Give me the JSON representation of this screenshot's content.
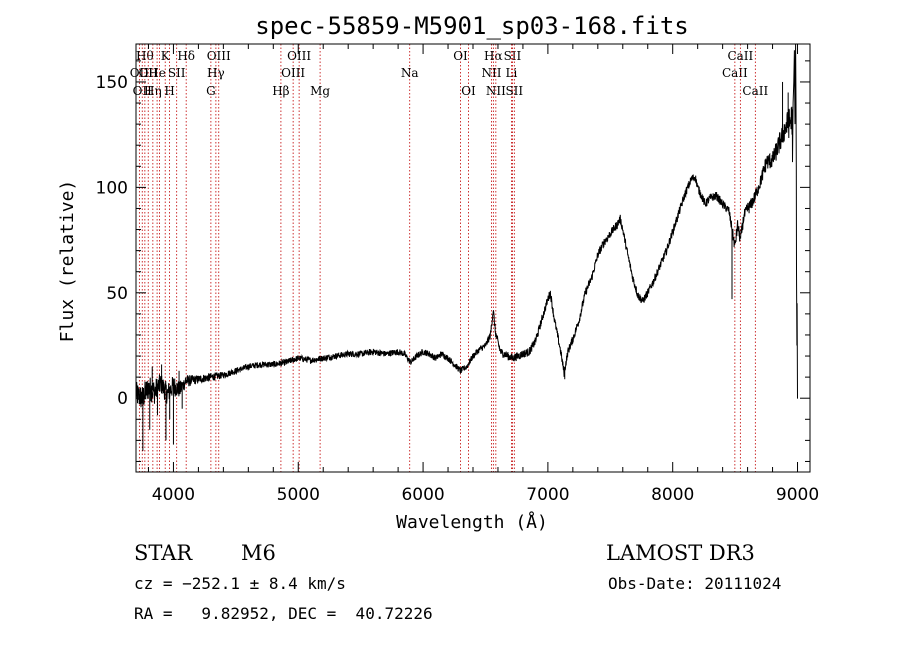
{
  "chart_data": {
    "type": "line",
    "title": "spec-55859-M5901_sp03-168.fits",
    "xlabel": "Wavelength (Å)",
    "ylabel": "Flux (relative)",
    "xlim": [
      3700,
      9100
    ],
    "ylim": [
      -35,
      168
    ],
    "xticks": [
      4000,
      5000,
      6000,
      7000,
      8000,
      9000
    ],
    "yticks": [
      0,
      50,
      100,
      150
    ],
    "xminor_step": 200,
    "yminor_step": 10,
    "line_color": "#000000",
    "marker_color": "#c00000",
    "spectrum_anchors": {
      "x": [
        3700,
        3750,
        3800,
        3850,
        3900,
        3950,
        4000,
        4050,
        4100,
        4200,
        4300,
        4400,
        4500,
        4600,
        4700,
        4800,
        4900,
        5000,
        5100,
        5200,
        5300,
        5400,
        5500,
        5600,
        5700,
        5800,
        5850,
        5900,
        5950,
        6000,
        6050,
        6100,
        6150,
        6200,
        6250,
        6300,
        6350,
        6400,
        6450,
        6500,
        6540,
        6562,
        6580,
        6620,
        6680,
        6720,
        6800,
        6850,
        6900,
        6950,
        7000,
        7020,
        7050,
        7100,
        7130,
        7160,
        7200,
        7250,
        7300,
        7350,
        7400,
        7450,
        7500,
        7550,
        7580,
        7600,
        7640,
        7680,
        7720,
        7760,
        7800,
        7850,
        7900,
        7950,
        8000,
        8050,
        8100,
        8150,
        8180,
        8200,
        8230,
        8260,
        8300,
        8350,
        8400,
        8450,
        8498,
        8520,
        8542,
        8570,
        8600,
        8620,
        8662,
        8700,
        8750,
        8800,
        8850,
        8900,
        8950,
        8975,
        9000
      ],
      "y": [
        2,
        0,
        5,
        3,
        7,
        2,
        6,
        4,
        8,
        9,
        10,
        11,
        13,
        15,
        16,
        16,
        17,
        19,
        18,
        19,
        20,
        21,
        21,
        22,
        21,
        22,
        21,
        17,
        20,
        22,
        21,
        19,
        21,
        19,
        16,
        13,
        15,
        20,
        23,
        25,
        30,
        42,
        31,
        22,
        20,
        19,
        21,
        22,
        27,
        37,
        47,
        50,
        38,
        23,
        12,
        22,
        28,
        37,
        50,
        57,
        68,
        74,
        78,
        82,
        85,
        80,
        68,
        57,
        49,
        46,
        50,
        56,
        63,
        70,
        79,
        88,
        97,
        104,
        105,
        100,
        96,
        92,
        95,
        96,
        92,
        89,
        72,
        82,
        75,
        86,
        90,
        91,
        96,
        102,
        112,
        113,
        120,
        128,
        132,
        136,
        118
      ],
      "noise": [
        6,
        6,
        6,
        6,
        5,
        5,
        5,
        4,
        3,
        2,
        2,
        1.5,
        1.5,
        1.5,
        1.5,
        1.5,
        1.5,
        1.5,
        1.5,
        1.5,
        1.5,
        1.5,
        1.5,
        1.5,
        1.5,
        1.5,
        1.5,
        1.5,
        1.5,
        1.5,
        1.5,
        1.5,
        1.5,
        1.5,
        1.5,
        1.5,
        1.5,
        1.5,
        1.5,
        1.5,
        2,
        2,
        2,
        2,
        2,
        2,
        2,
        2,
        2,
        2,
        2,
        2,
        2,
        2,
        2,
        2,
        2,
        2,
        2,
        2,
        2,
        2,
        2,
        2,
        2,
        2,
        2,
        2,
        2,
        2,
        2,
        2,
        2,
        2,
        2,
        2,
        2,
        2,
        2,
        2,
        2,
        2,
        2,
        2,
        2,
        2,
        3,
        3,
        3,
        3,
        3,
        3,
        3,
        3,
        4,
        4,
        5,
        6,
        8,
        10,
        12
      ]
    },
    "spectrum_tail": {
      "x": [
        8960,
        8965,
        8970,
        8975,
        8980,
        8985,
        8988,
        8990,
        8992,
        8995,
        8997,
        9000,
        9002
      ],
      "y": [
        112,
        140,
        150,
        165,
        130,
        168,
        140,
        110,
        60,
        25,
        45,
        0,
        0
      ]
    },
    "spikes": [
      {
        "x": 3755,
        "y": -25
      },
      {
        "x": 3810,
        "y": -15
      },
      {
        "x": 3830,
        "y": 15
      },
      {
        "x": 3872,
        "y": -8
      },
      {
        "x": 3905,
        "y": 16
      },
      {
        "x": 3940,
        "y": -20
      },
      {
        "x": 3970,
        "y": -10
      },
      {
        "x": 4000,
        "y": -22
      },
      {
        "x": 4045,
        "y": 13
      },
      {
        "x": 4070,
        "y": -5
      },
      {
        "x": 4100,
        "y": 10
      },
      {
        "x": 7135,
        "y": 9
      },
      {
        "x": 7160,
        "y": 23
      },
      {
        "x": 8475,
        "y": 47
      },
      {
        "x": 8880,
        "y": 150
      },
      {
        "x": 8925,
        "y": 145
      }
    ],
    "lines": [
      {
        "x": 3727,
        "name": "OII",
        "row": 1
      },
      {
        "x": 3750,
        "name": "OII",
        "row": 2
      },
      {
        "x": 3771,
        "name": "Hθ",
        "row": 0
      },
      {
        "x": 3798,
        "name": "OII",
        "row": 1
      },
      {
        "x": 3835,
        "name": "Hη",
        "row": 2
      },
      {
        "x": 3869,
        "name": "He",
        "row": 1
      },
      {
        "x": 3889,
        "name": "",
        "row": 1
      },
      {
        "x": 3934,
        "name": "K",
        "row": 0
      },
      {
        "x": 3969,
        "name": "H",
        "row": 2
      },
      {
        "x": 4026,
        "name": "SII",
        "row": 1
      },
      {
        "x": 4102,
        "name": "Hδ",
        "row": 0
      },
      {
        "x": 4300,
        "name": "G",
        "row": 2
      },
      {
        "x": 4340,
        "name": "Hγ",
        "row": 1
      },
      {
        "x": 4363,
        "name": "OIII",
        "row": 0
      },
      {
        "x": 4861,
        "name": "Hβ",
        "row": 2
      },
      {
        "x": 4959,
        "name": "OIII",
        "row": 1
      },
      {
        "x": 5007,
        "name": "OIII",
        "row": 0
      },
      {
        "x": 5175,
        "name": "Mg",
        "row": 2
      },
      {
        "x": 5893,
        "name": "Na",
        "row": 1
      },
      {
        "x": 6300,
        "name": "OI",
        "row": 0
      },
      {
        "x": 6364,
        "name": "OI",
        "row": 2
      },
      {
        "x": 6548,
        "name": "NII",
        "row": 1
      },
      {
        "x": 6563,
        "name": "Hα",
        "row": 0
      },
      {
        "x": 6583,
        "name": "NII",
        "row": 2
      },
      {
        "x": 6708,
        "name": "Li",
        "row": 1
      },
      {
        "x": 6716,
        "name": "SII",
        "row": 0
      },
      {
        "x": 6731,
        "name": "SII",
        "row": 2
      },
      {
        "x": 8498,
        "name": "CaII",
        "row": 1
      },
      {
        "x": 8542,
        "name": "CaII",
        "row": 0
      },
      {
        "x": 8662,
        "name": "CaII",
        "row": 2
      }
    ]
  },
  "info": {
    "class": "STAR",
    "subclass": "M6",
    "survey": "LAMOST DR3",
    "cz": "cz = −252.1 ± 8.4 km/s",
    "obs_date": "Obs-Date: 20111024",
    "radec": "RA =   9.82952, DEC =  40.72226"
  }
}
